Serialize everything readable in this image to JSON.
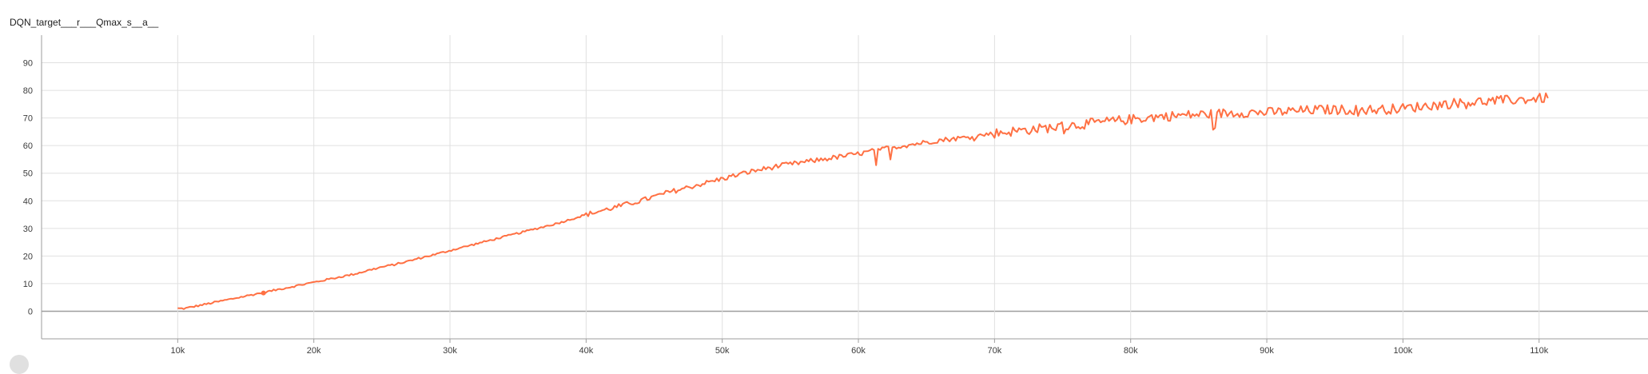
{
  "chart_title": "DQN_target___r___Qmax_s__a__",
  "chart_data": {
    "type": "line",
    "title": "DQN_target___r___Qmax_s__a__",
    "xlabel": "",
    "ylabel": "",
    "xlim": [
      0,
      118000
    ],
    "ylim": [
      -10,
      100
    ],
    "x_ticks": [
      10000,
      20000,
      30000,
      40000,
      50000,
      60000,
      70000,
      80000,
      90000,
      100000,
      110000
    ],
    "x_tick_labels": [
      "10k",
      "20k",
      "30k",
      "40k",
      "50k",
      "60k",
      "70k",
      "80k",
      "90k",
      "100k",
      "110k"
    ],
    "y_ticks": [
      0,
      10,
      20,
      30,
      40,
      50,
      60,
      70,
      80,
      90
    ],
    "y_tick_labels": [
      "0",
      "10",
      "20",
      "30",
      "40",
      "50",
      "60",
      "70",
      "80",
      "90"
    ],
    "grid": true,
    "series_color": "#ff7043",
    "series": [
      {
        "x": [
          10000,
          10500,
          11000,
          12000,
          13000,
          14000,
          15000,
          16000,
          17000,
          18000,
          19000,
          20000,
          21000,
          22000,
          23000,
          24000,
          25000,
          26000,
          27000,
          28000,
          29000,
          30000,
          32000,
          34000,
          36000,
          38000,
          40000,
          42000,
          44000,
          46000,
          48000,
          50000,
          52000,
          54000,
          56000,
          58000,
          60000,
          62000,
          64000,
          66000,
          68000,
          70000,
          72000,
          74000,
          76000,
          78000,
          80000,
          82000,
          84000,
          86000,
          88000,
          90000,
          92000,
          94000,
          96000,
          98000,
          100000,
          102000,
          104000,
          106000,
          108000,
          110000,
          110700
        ],
        "y": [
          1,
          1,
          1.5,
          2.5,
          3.5,
          4.5,
          5.5,
          6.5,
          7.5,
          8.5,
          9.5,
          10.5,
          11.5,
          12.5,
          13.5,
          14.8,
          16,
          17,
          18.2,
          19.5,
          20.7,
          22,
          24.5,
          27,
          29.5,
          32,
          35,
          37.5,
          40,
          43,
          45.5,
          48,
          50.5,
          52.5,
          54,
          55.5,
          57,
          59,
          60.5,
          62,
          63,
          64.5,
          65.5,
          66.5,
          67.5,
          68.5,
          69.5,
          70.5,
          71,
          71.5,
          72,
          72,
          72.5,
          73,
          73,
          73,
          73.5,
          74.5,
          75.5,
          76,
          76.5,
          77,
          77.5
        ]
      }
    ]
  }
}
